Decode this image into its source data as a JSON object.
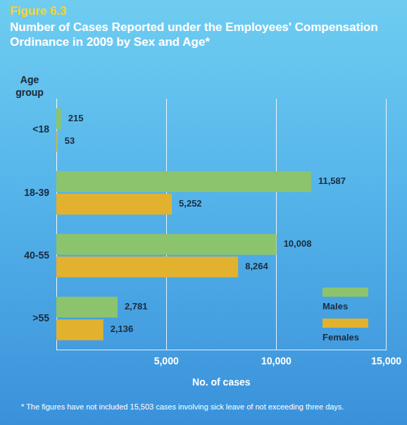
{
  "chart_data": {
    "type": "bar",
    "orientation": "horizontal",
    "subtitle": "Figure 6.3",
    "title": "Number of Cases Reported under the Employees' Compensation Ordinance in 2009 by Sex and Age*",
    "y_label": "Age group",
    "x_label": "No. of cases",
    "footnote": "* The figures have not included 15,503 cases involving sick leave of not exceeding three days.",
    "categories": [
      "<18",
      "18-39",
      "40-55",
      ">55"
    ],
    "series": [
      {
        "name": "Males",
        "color": "#8cc46e",
        "values": [
          215,
          11587,
          10008,
          2781
        ],
        "value_labels": [
          "215",
          "11,587",
          "10,008",
          "2,781"
        ]
      },
      {
        "name": "Females",
        "color": "#e2b22e",
        "values": [
          53,
          5252,
          8264,
          2136
        ],
        "value_labels": [
          "53",
          "5,252",
          "8,264",
          "2,136"
        ]
      }
    ],
    "xlim": [
      0,
      15000
    ],
    "xticks": [
      {
        "value": 5000,
        "label": "5,000"
      },
      {
        "value": 10000,
        "label": "10,000"
      },
      {
        "value": 15000,
        "label": "15,000"
      }
    ],
    "grid": true,
    "legend": "bottom-right",
    "data_labels": true
  }
}
